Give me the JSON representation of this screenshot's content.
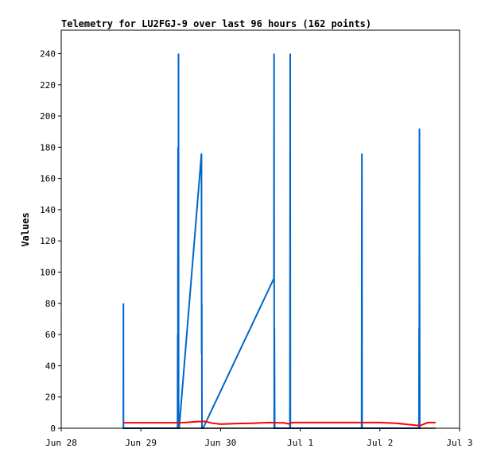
{
  "chart_data": {
    "type": "line",
    "title": "Telemetry for LU2FGJ-9 over last 96 hours (162 points)",
    "xlabel": "",
    "ylabel": "Values",
    "ylim": [
      0,
      255
    ],
    "yticks": [
      0,
      20,
      40,
      60,
      80,
      100,
      120,
      140,
      160,
      180,
      200,
      220,
      240
    ],
    "xlim": [
      0,
      5
    ],
    "xticks": [
      {
        "value": 0,
        "label": "Jun 28"
      },
      {
        "value": 1,
        "label": "Jun 29"
      },
      {
        "value": 2,
        "label": "Jun 30"
      },
      {
        "value": 3,
        "label": "Jul 1"
      },
      {
        "value": 4,
        "label": "Jul 2"
      },
      {
        "value": 5,
        "label": "Jul 3"
      }
    ],
    "grid": false,
    "legend": "none",
    "series": [
      {
        "color": "#0066cc",
        "x": [
          0.78,
          0.78,
          0.781,
          0.782,
          1.46,
          1.462,
          1.464,
          1.466,
          1.47,
          1.472,
          1.473,
          1.475,
          1.478,
          1.48,
          1.76,
          1.762,
          1.764,
          1.766,
          1.78,
          2.67,
          2.672,
          2.674,
          2.676,
          2.68,
          2.68,
          2.87,
          2.872,
          2.874,
          2.876,
          2.878,
          2.88,
          3.77,
          3.772,
          3.774,
          3.776,
          3.778,
          3.78,
          4.49,
          4.492,
          4.494,
          4.496,
          4.5,
          4.502,
          4.504,
          4.506,
          4.508,
          4.51
        ],
        "y": [
          0,
          80,
          0,
          0,
          0,
          60,
          0,
          180,
          0,
          240,
          0,
          0,
          0,
          0,
          176,
          48,
          80,
          0,
          0,
          96,
          240,
          0,
          64,
          0,
          0,
          0,
          120,
          240,
          0,
          0,
          0,
          0,
          128,
          176,
          0,
          0,
          0,
          0,
          64,
          0,
          192,
          0,
          0,
          0,
          0,
          0,
          0
        ]
      },
      {
        "color": "#ff0000",
        "x": [
          0.78,
          1.0,
          1.2,
          1.4,
          1.55,
          1.7,
          1.8,
          1.9,
          2.0,
          2.2,
          2.4,
          2.6,
          2.8,
          2.85,
          2.9,
          3.1,
          3.4,
          3.7,
          4.0,
          4.2,
          4.4,
          4.5,
          4.6,
          4.7
        ],
        "y": [
          3.5,
          3.5,
          3.5,
          3.5,
          3.6,
          4.2,
          4.4,
          3.2,
          2.6,
          3.0,
          3.2,
          3.6,
          3.4,
          2.8,
          3.6,
          3.6,
          3.6,
          3.6,
          3.6,
          3.2,
          2.2,
          1.6,
          3.6,
          3.6
        ]
      },
      {
        "color": "#000000",
        "x": [
          0.78,
          4.7
        ],
        "y": [
          0,
          0
        ]
      }
    ]
  }
}
